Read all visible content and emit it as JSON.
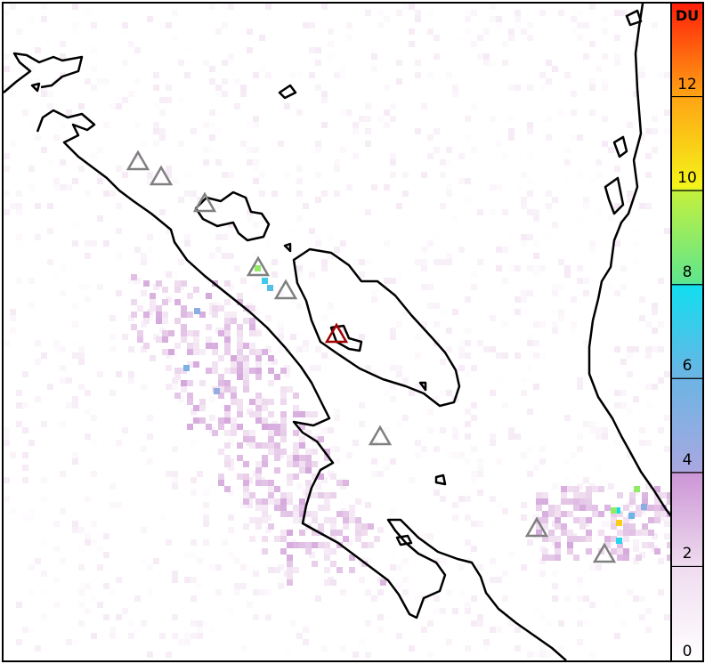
{
  "colorbar": {
    "unit": "DU",
    "range": [
      0,
      14
    ],
    "ticks": [
      "0",
      "2",
      "4",
      "6",
      "8",
      "10",
      "12"
    ],
    "colors": {
      "0": "#ffffff",
      "2": "#efdcef",
      "4": "#cc96d6",
      "4.05": "#a8a8e0",
      "6": "#6cb4e4",
      "8": "#12def0",
      "8.05": "#5ee68e",
      "10": "#c4f03c",
      "10.05": "#f4f41a",
      "12": "#ffa414",
      "14": "#ff1e0a"
    }
  },
  "map": {
    "coastline_color": "#000000",
    "volcano_marker_color": "#808080",
    "highlighted_volcano_color": "#a00000",
    "volcano_count": 9
  }
}
